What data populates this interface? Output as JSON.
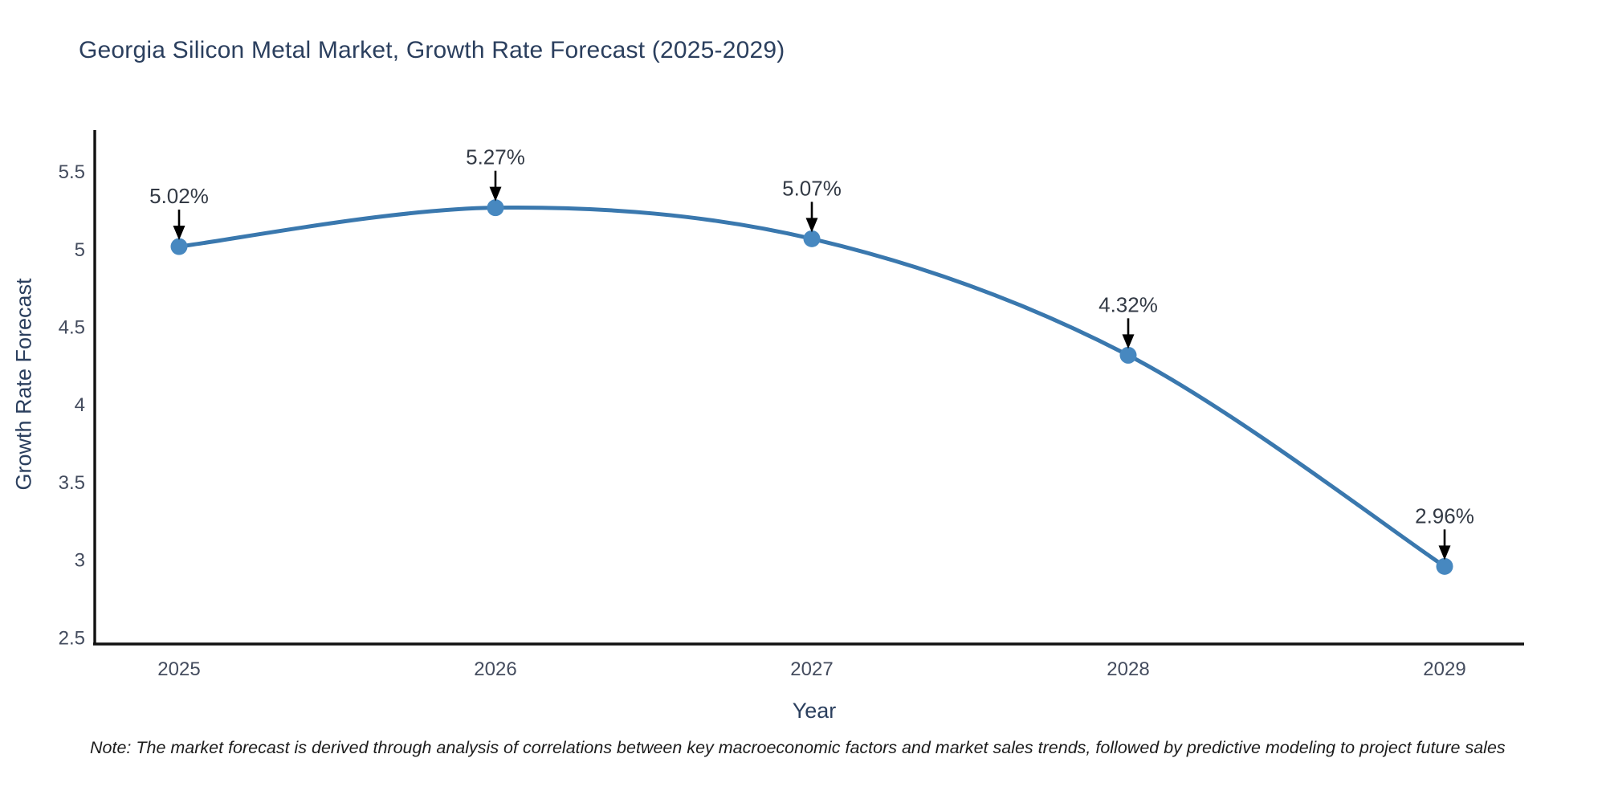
{
  "chart": {
    "title": "Georgia Silicon Metal Market, Growth Rate Forecast (2025-2029)",
    "note": "Note: The market forecast is derived through analysis of correlations between key macroeconomic factors and market sales trends, followed by predictive modeling to project future sales",
    "colors": {
      "line": "#3a78ae",
      "marker": "#4788c0",
      "axis_line": "#111111",
      "title_text": "#2b3f5e",
      "tick_text": "#444c5e",
      "annotation_text": "#333a45",
      "arrow": "#000000",
      "background": "#ffffff"
    }
  },
  "chart_data": {
    "type": "line",
    "title": "Georgia Silicon Metal Market, Growth Rate Forecast (2025-2029)",
    "xlabel": "Year",
    "ylabel": "Growth Rate Forecast",
    "categories": [
      "2025",
      "2026",
      "2027",
      "2028",
      "2029"
    ],
    "values": [
      5.02,
      5.27,
      5.07,
      4.32,
      2.96
    ],
    "point_labels": [
      "5.02%",
      "5.27%",
      "5.07%",
      "4.32%",
      "2.96%"
    ],
    "yticks": [
      2.5,
      3,
      3.5,
      4,
      4.5,
      5,
      5.5
    ],
    "ylim": [
      2.46,
      5.77
    ],
    "line_shape": "spline",
    "grid": false,
    "legend": "none",
    "annotations": "value labels with down arrows above each point"
  }
}
